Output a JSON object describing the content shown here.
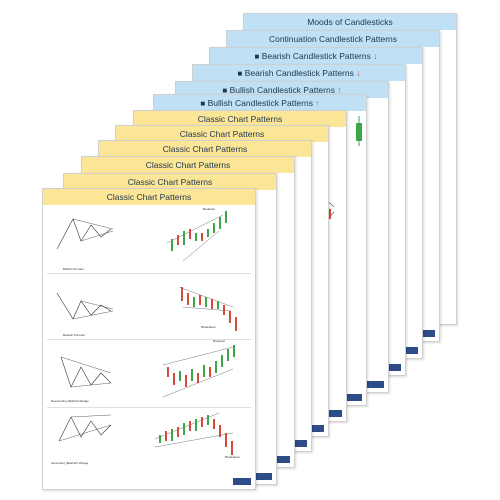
{
  "colors": {
    "header_blue": "#bfe0f5",
    "header_yellow": "#fbe596",
    "title_text": "#1f3550",
    "candle_green": "#3ea64a",
    "candle_red": "#d64a3a",
    "badge_navy": "#2c4d87"
  },
  "blue_cards": [
    {
      "title": "Moods of Candlesticks",
      "icon": "",
      "arrow": ""
    },
    {
      "title": "Continuation Candlestick Patterns",
      "icon": "",
      "arrow": ""
    },
    {
      "title": "Bearish Candlestick Patterns",
      "icon": "bear-icon",
      "arrow": "down-arrow-icon"
    },
    {
      "title": "Bearish Candlestick Patterns",
      "icon": "bear-icon",
      "arrow": "down-arrow-icon"
    },
    {
      "title": "Bullish Candlestick Patterns",
      "icon": "bull-icon",
      "arrow": "up-arrow-icon"
    },
    {
      "title": "Bullish Candlestick Patterns",
      "icon": "bull-icon",
      "arrow": "up-arrow-icon"
    }
  ],
  "yellow_cards": [
    {
      "title": "Classic Chart Patterns"
    },
    {
      "title": "Classic Chart Patterns"
    },
    {
      "title": "Classic Chart Patterns"
    },
    {
      "title": "Classic Chart Patterns"
    },
    {
      "title": "Classic Chart Patterns"
    },
    {
      "title": "Classic Chart Patterns"
    }
  ],
  "front_card": {
    "title": "Classic Chart Patterns",
    "patterns": [
      {
        "caption": "Bullish Pennant",
        "point_labels": [
          "Breakout"
        ]
      },
      {
        "caption": "Bearish Pennant",
        "point_labels": [
          "Breakdown"
        ]
      },
      {
        "caption": "Descending (Bullish) Wedge",
        "point_labels": [
          "Breakout"
        ]
      },
      {
        "caption": "Ascending (Bearish) Wedge",
        "point_labels": [
          "Breakdown"
        ]
      }
    ]
  }
}
